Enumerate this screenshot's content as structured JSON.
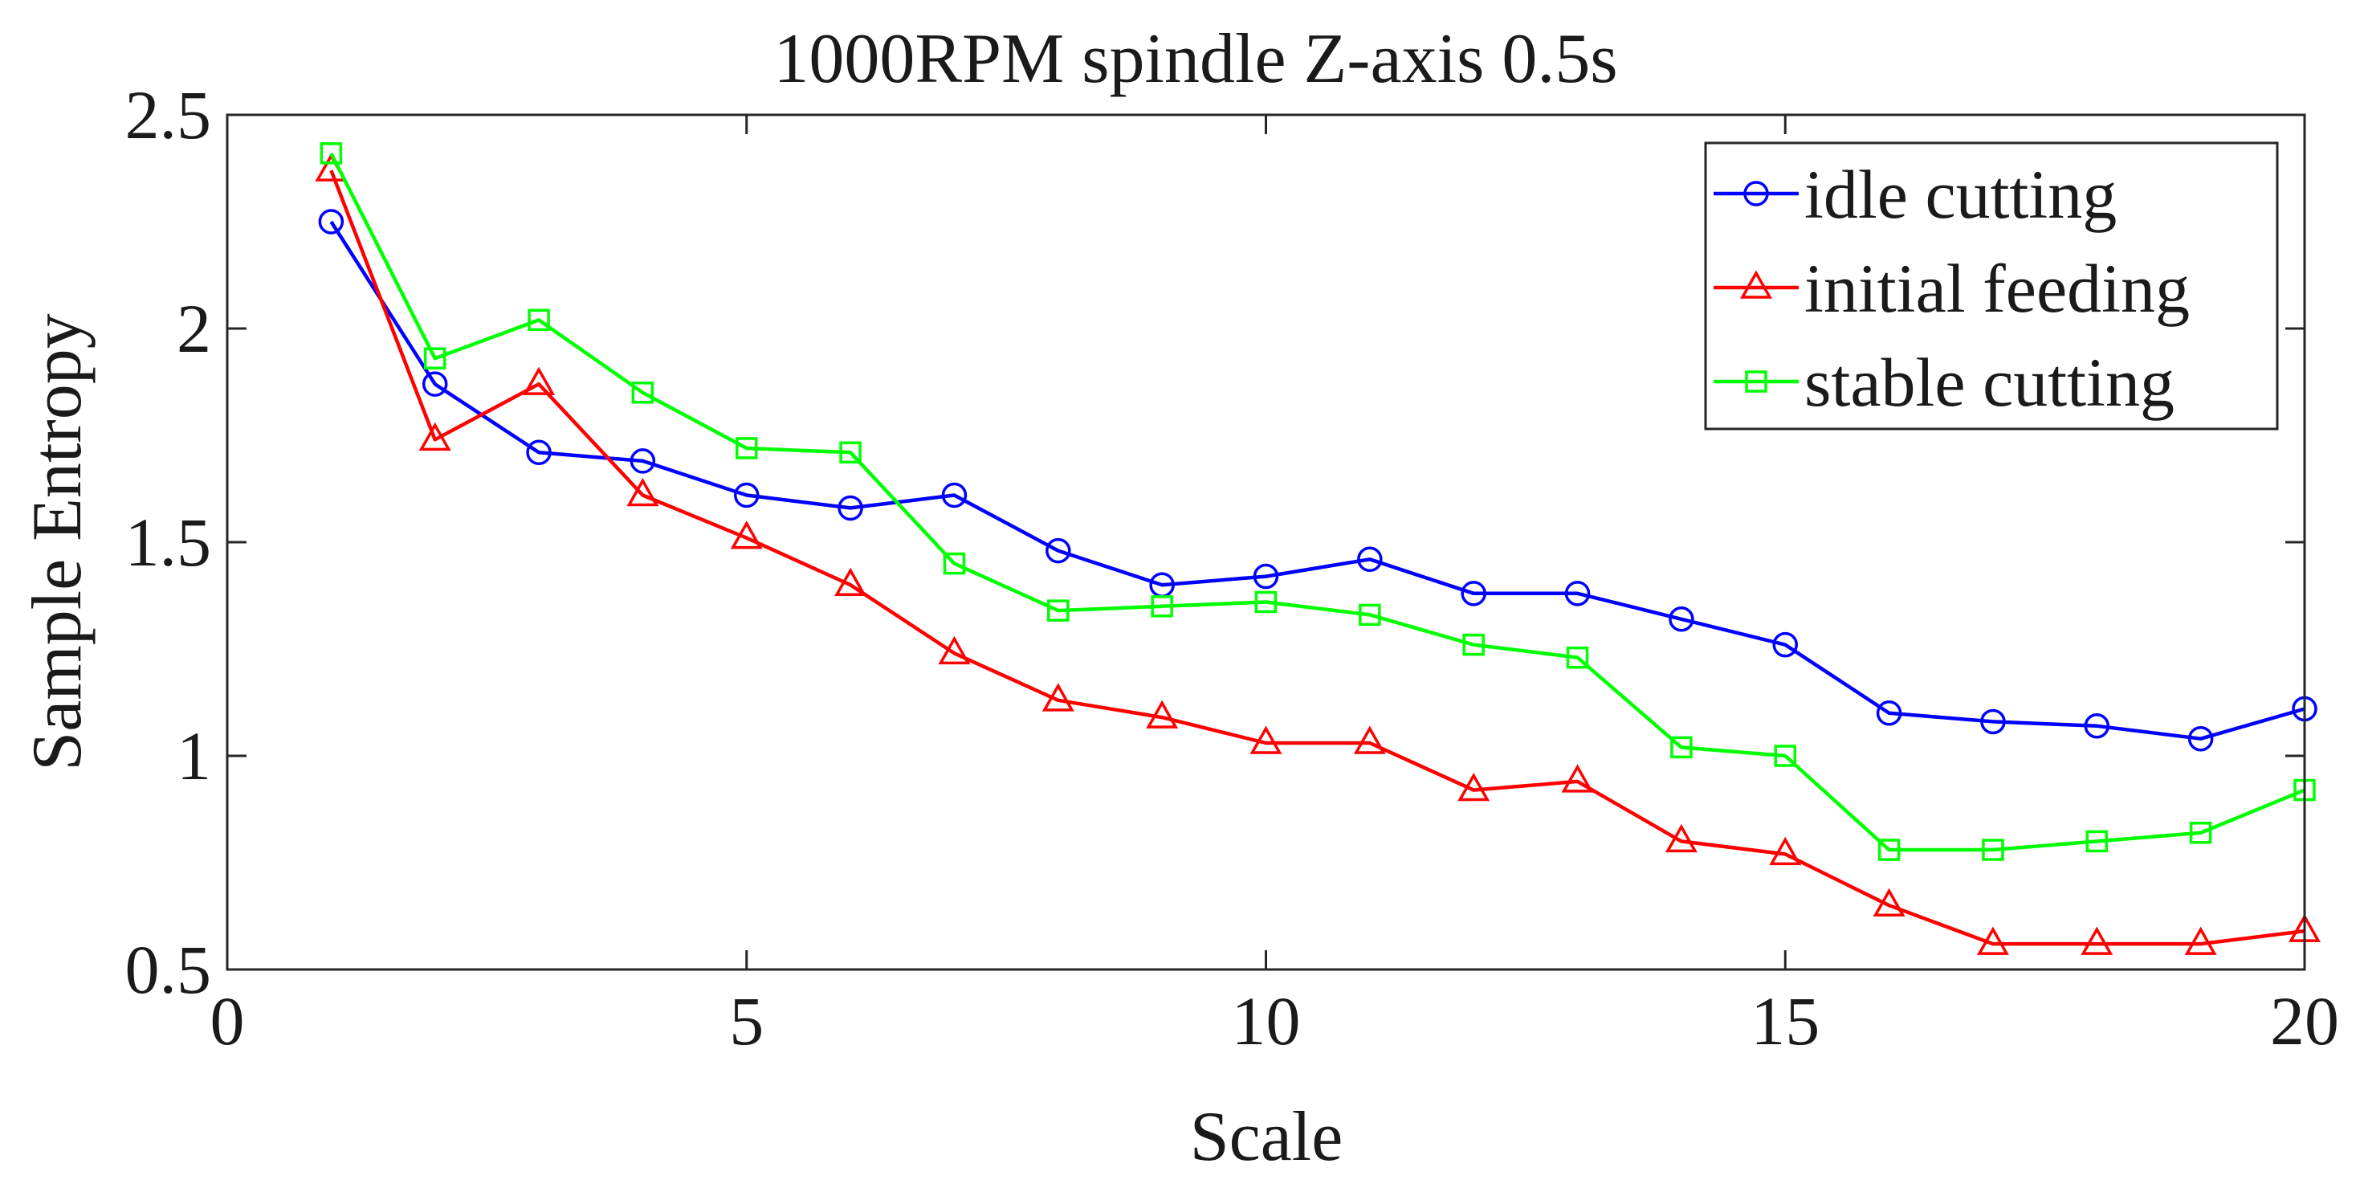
{
  "chart_data": {
    "type": "line",
    "title": "1000RPM spindle Z-axis 0.5s",
    "xlabel": "Scale",
    "ylabel": "Sample Entropy",
    "xlim": [
      0,
      20
    ],
    "ylim": [
      0.5,
      2.5
    ],
    "xticks": [
      0,
      5,
      10,
      15,
      20
    ],
    "xtick_labels": [
      "0",
      "5",
      "10",
      "15",
      "20"
    ],
    "yticks": [
      0.5,
      1,
      1.5,
      2,
      2.5
    ],
    "ytick_labels": [
      "0.5",
      "1",
      "1.5",
      "2",
      "2.5"
    ],
    "grid": false,
    "legend_position": "top-right",
    "x": [
      1,
      2,
      3,
      4,
      5,
      6,
      7,
      8,
      9,
      10,
      11,
      12,
      13,
      14,
      15,
      16,
      17,
      18,
      19,
      20
    ],
    "series": [
      {
        "name": "idle cutting",
        "color": "#0000ff",
        "marker": "circle",
        "values": [
          2.25,
          1.87,
          1.71,
          1.69,
          1.61,
          1.58,
          1.61,
          1.48,
          1.4,
          1.42,
          1.46,
          1.38,
          1.38,
          1.32,
          1.26,
          1.1,
          1.08,
          1.07,
          1.04,
          1.11
        ]
      },
      {
        "name": "initial feeding",
        "color": "#ff0000",
        "marker": "triangle",
        "values": [
          2.37,
          1.74,
          1.87,
          1.61,
          1.51,
          1.4,
          1.24,
          1.13,
          1.09,
          1.03,
          1.03,
          0.92,
          0.94,
          0.8,
          0.77,
          0.65,
          0.56,
          0.56,
          0.56,
          0.59
        ]
      },
      {
        "name": "stable cutting",
        "color": "#00ff00",
        "marker": "square",
        "values": [
          2.41,
          1.93,
          2.02,
          1.85,
          1.72,
          1.71,
          1.45,
          1.34,
          1.35,
          1.36,
          1.33,
          1.26,
          1.23,
          1.02,
          1.0,
          0.78,
          0.78,
          0.8,
          0.82,
          0.92
        ]
      }
    ]
  }
}
